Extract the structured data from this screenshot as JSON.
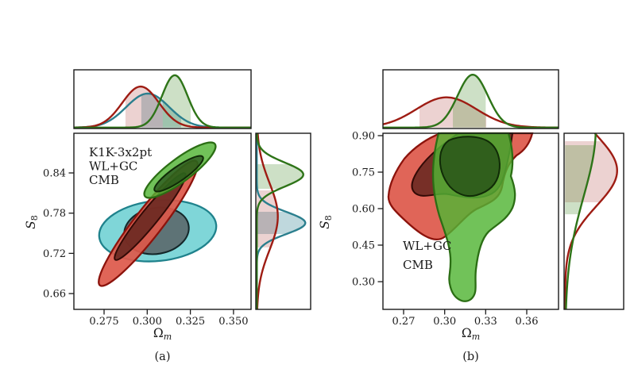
{
  "background": "#ffffff",
  "colors": {
    "teal": {
      "text": "#3f92a3",
      "line": "#2b7f8e",
      "contour_edge": "#1f828c",
      "contour_edge_inner": "#14272a",
      "fill_outer": "#7fd6d8",
      "fill_inner": "#5e7376",
      "band": "rgba(43,127,142,0.30)"
    },
    "red": {
      "text": "#a32f27",
      "line": "#9e1c13",
      "contour_edge": "#8c130c",
      "contour_edge_inner": "#330a06",
      "fill_outer": "rgba(221,88,74,0.92)",
      "fill_inner": "rgba(90,32,26,0.78)",
      "band": "rgba(160,30,25,0.20)"
    },
    "green": {
      "text": "#3a7a21",
      "line": "#2e7418",
      "contour_edge": "#2b6e14",
      "contour_edge_inner": "#102b07",
      "fill_outer": "rgba(82,180,52,0.82)",
      "fill_inner": "rgba(24,58,14,0.62)",
      "band": "rgba(70,140,45,0.27)"
    }
  },
  "chart_data": {
    "type": "contour",
    "description": "Two corner-style panels showing 2D posterior contours (68% and 95% credible levels) in the Omega_m vs S_8 plane, each with 1D marginal posterior distributions on the top and right.",
    "panels": [
      {
        "caption": "(a)",
        "xlabel": {
          "base": "Ω",
          "sub": "m"
        },
        "ylabel": {
          "base": "S",
          "sub": "8"
        },
        "x_range": [
          0.2575,
          0.3602
        ],
        "y_range": [
          0.6365,
          0.8992
        ],
        "x_ticks": [
          {
            "value": 0.275,
            "label": "0.275"
          },
          {
            "value": 0.3,
            "label": "0.300"
          },
          {
            "value": 0.325,
            "label": "0.325"
          },
          {
            "value": 0.35,
            "label": "0.350"
          }
        ],
        "y_ticks": [
          {
            "value": 0.84,
            "label": "0.84"
          },
          {
            "value": 0.78,
            "label": "0.78"
          },
          {
            "value": 0.72,
            "label": "0.72"
          },
          {
            "value": 0.66,
            "label": "0.66"
          }
        ],
        "series": [
          {
            "name": "K1K-3x2pt",
            "color": "teal"
          },
          {
            "name": "WL+GC",
            "color": "red"
          },
          {
            "name": "CMB",
            "color": "green"
          }
        ],
        "top_marginal": {
          "curves": [
            {
              "series": "K1K-3x2pt",
              "color": "teal",
              "mu": 0.3003,
              "sigma": 0.0124,
              "amp": 0.63,
              "band": [
                0.2966,
                0.3197
              ]
            },
            {
              "series": "WL+GC",
              "color": "red",
              "mu": 0.2962,
              "sigma": 0.0106,
              "amp": 0.76,
              "band": [
                0.2874,
                0.309
              ]
            },
            {
              "series": "CMB",
              "color": "green",
              "mu": 0.316,
              "sigma": 0.0074,
              "amp": 0.97,
              "band": [
                0.309,
                0.3252
              ]
            }
          ]
        },
        "right_marginal": {
          "curves": [
            {
              "series": "K1K-3x2pt",
              "color": "teal",
              "mu": 0.7654,
              "sigma": 0.0166,
              "amp": 0.97,
              "band": [
                0.7489,
                0.782
              ]
            },
            {
              "series": "WL+GC",
              "color": "red",
              "mu": 0.775,
              "sigma": 0.05,
              "amp": 0.42,
              "band": [
                0.729,
                0.814
              ]
            },
            {
              "series": "CMB",
              "color": "green",
              "mu": 0.8376,
              "sigma": 0.0178,
              "amp": 0.93,
              "band": [
                0.8163,
                0.853
              ]
            }
          ]
        },
        "contours": [
          {
            "series": "K1K-3x2pt",
            "level": "95%",
            "center": [
              0.306,
              0.754
            ],
            "half_extent": [
              0.034,
              0.045
            ]
          },
          {
            "series": "K1K-3x2pt",
            "level": "68%",
            "center": [
              0.306,
              0.754
            ],
            "half_extent": [
              0.019,
              0.034
            ]
          },
          {
            "series": "WL+GC",
            "level": "95%",
            "center": [
              0.3006,
              0.765
            ],
            "axis_from": [
              0.272,
              0.672
            ],
            "axis_to": [
              0.329,
              0.858
            ]
          },
          {
            "series": "WL+GC",
            "level": "68%",
            "center": [
              0.3017,
              0.775
            ],
            "axis_from": [
              0.281,
              0.706
            ],
            "axis_to": [
              0.322,
              0.844
            ]
          },
          {
            "series": "CMB",
            "level": "95%",
            "center": [
              0.319,
              0.844
            ],
            "axis_from": [
              0.299,
              0.806
            ],
            "axis_to": [
              0.339,
              0.883
            ]
          },
          {
            "series": "CMB",
            "level": "68%",
            "center": [
              0.3182,
              0.839
            ],
            "axis_from": [
              0.3045,
              0.814
            ],
            "axis_to": [
              0.332,
              0.864
            ]
          }
        ]
      },
      {
        "caption": "(b)",
        "xlabel": {
          "base": "Ω",
          "sub": "m"
        },
        "ylabel": {
          "base": "S",
          "sub": "8"
        },
        "x_range": [
          0.2549,
          0.3832
        ],
        "y_range": [
          0.186,
          0.9098
        ],
        "x_ticks": [
          {
            "value": 0.27,
            "label": "0.27"
          },
          {
            "value": 0.3,
            "label": "0.30"
          },
          {
            "value": 0.33,
            "label": "0.33"
          },
          {
            "value": 0.36,
            "label": "0.36"
          }
        ],
        "y_ticks": [
          {
            "value": 0.9,
            "label": "0.90"
          },
          {
            "value": 0.75,
            "label": "0.75"
          },
          {
            "value": 0.6,
            "label": "0.60"
          },
          {
            "value": 0.45,
            "label": "0.45"
          },
          {
            "value": 0.3,
            "label": "0.30"
          }
        ],
        "series": [
          {
            "name": "WL+GC",
            "color": "red"
          },
          {
            "name": "CMB",
            "color": "green"
          }
        ],
        "top_marginal": {
          "curves": [
            {
              "series": "WL+GC",
              "color": "red",
              "mu": 0.3013,
              "sigma": 0.022,
              "amp": 0.56,
              "band": [
                0.2816,
                0.3304
              ]
            },
            {
              "series": "CMB",
              "color": "green",
              "mu": 0.3205,
              "sigma": 0.011,
              "amp": 0.98,
              "band": [
                0.306,
                0.33
              ]
            }
          ]
        },
        "right_marginal": {
          "curves": [
            {
              "series": "WL+GC",
              "color": "red",
              "mu": 0.7565,
              "sigma": 0.145,
              "amp": 0.95,
              "band": [
                0.626,
                0.877
              ]
            },
            {
              "series": "CMB",
              "color": "green",
              "mu": 0.93,
              "sigma": 0.28,
              "amp": 0.56,
              "band": [
                0.577,
                0.861
              ]
            }
          ]
        },
        "contours": [
          {
            "series": "WL+GC",
            "level": "95%",
            "x_extent": [
              0.259,
              0.348
            ],
            "y_extent": [
              0.473,
              0.91
            ],
            "note": "clipped at S8=0.91"
          },
          {
            "series": "WL+GC",
            "level": "68%",
            "x_extent": [
              0.2746,
              0.3466
            ],
            "y_extent": [
              0.626,
              0.91
            ]
          },
          {
            "series": "CMB",
            "level": "95%",
            "x_extent": [
              0.2909,
              0.3518
            ],
            "y_extent": [
              0.225,
              0.91
            ],
            "note": "long tail to low S8"
          },
          {
            "series": "CMB",
            "level": "68%",
            "x_extent": [
              0.2955,
              0.3425
            ],
            "y_extent": [
              0.652,
              0.903
            ]
          }
        ]
      }
    ]
  }
}
